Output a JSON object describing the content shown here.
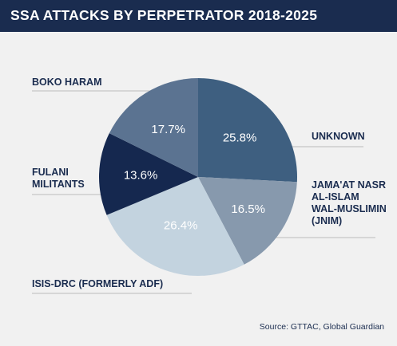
{
  "colors": {
    "header_bg": "#1a2c4f",
    "page_bg": "#f1f1f1",
    "text": "#1a2c4f",
    "leader": "#bbbbbb"
  },
  "chart_data": {
    "type": "pie",
    "title": "SSA ATTACKS BY PERPETRATOR 2018-2025",
    "slices": [
      {
        "label": "UNKNOWN",
        "value": 25.8,
        "value_label": "25.8%",
        "color": "#3e5f80"
      },
      {
        "label": "JAMA'AT NASR AL-ISLAM WAL-MUSLIMIN (JNIM)",
        "label_lines": [
          "JAMA'AT NASR",
          "AL-ISLAM",
          "WAL-MUSLIMIN",
          "(JNIM)"
        ],
        "value": 16.5,
        "value_label": "16.5%",
        "color": "#8799ad"
      },
      {
        "label": "ISIS-DRC (FORMERLY ADF)",
        "value": 26.4,
        "value_label": "26.4%",
        "color": "#c3d3df"
      },
      {
        "label": "FULANI MILITANTS",
        "label_lines": [
          "FULANI",
          "MILITANTS"
        ],
        "value": 13.6,
        "value_label": "13.6%",
        "color": "#15284f"
      },
      {
        "label": "BOKO HARAM",
        "value": 17.7,
        "value_label": "17.7%",
        "color": "#5b7391"
      }
    ],
    "source": "Source: GTTAC, Global Guardian"
  }
}
